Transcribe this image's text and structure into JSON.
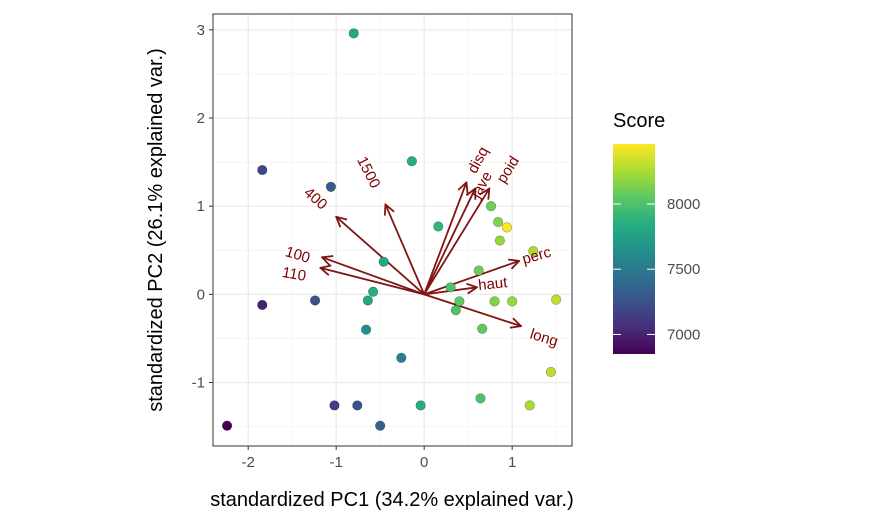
{
  "chart_data": {
    "type": "scatter",
    "xlabel": "standardized PC1 (34.2% explained var.)",
    "ylabel": "standardized PC2 (26.1% explained var.)",
    "xlim": [
      -2.4,
      1.68
    ],
    "ylim": [
      -1.72,
      3.18
    ],
    "x_ticks": [
      -2,
      -1,
      0,
      1
    ],
    "y_ticks": [
      -1,
      0,
      1,
      2,
      3
    ],
    "x_tick_labels": [
      "-2",
      "-1",
      "0",
      "1"
    ],
    "y_tick_labels": [
      "-1",
      "0",
      "1",
      "2",
      "3"
    ],
    "grid": true,
    "legend": {
      "title": "Score",
      "position": "right",
      "min": 6850,
      "max": 8460,
      "breaks": [
        7000,
        7500,
        8000
      ],
      "break_labels": [
        "7000",
        "7500",
        "8000"
      ],
      "colormap": "viridis"
    },
    "points": [
      {
        "x": -0.8,
        "y": 2.96,
        "score": 7800
      },
      {
        "x": -1.84,
        "y": 1.41,
        "score": 7200
      },
      {
        "x": -1.06,
        "y": 1.22,
        "score": 7300
      },
      {
        "x": -0.14,
        "y": 1.51,
        "score": 7850
      },
      {
        "x": 0.16,
        "y": 0.77,
        "score": 7900
      },
      {
        "x": -0.46,
        "y": 0.37,
        "score": 7800
      },
      {
        "x": -0.58,
        "y": 0.03,
        "score": 7850
      },
      {
        "x": -0.64,
        "y": -0.07,
        "score": 7800
      },
      {
        "x": -0.66,
        "y": -0.4,
        "score": 7650
      },
      {
        "x": -0.26,
        "y": -0.72,
        "score": 7550
      },
      {
        "x": -1.84,
        "y": -0.12,
        "score": 7000
      },
      {
        "x": -1.24,
        "y": -0.07,
        "score": 7250
      },
      {
        "x": -2.24,
        "y": -1.49,
        "score": 6850
      },
      {
        "x": -1.02,
        "y": -1.26,
        "score": 7150
      },
      {
        "x": -0.76,
        "y": -1.26,
        "score": 7250
      },
      {
        "x": -0.5,
        "y": -1.49,
        "score": 7350
      },
      {
        "x": -0.04,
        "y": -1.26,
        "score": 7850
      },
      {
        "x": 0.64,
        "y": -1.18,
        "score": 8000
      },
      {
        "x": 0.3,
        "y": 0.08,
        "score": 8000
      },
      {
        "x": 0.4,
        "y": -0.08,
        "score": 8050
      },
      {
        "x": 0.36,
        "y": -0.18,
        "score": 8000
      },
      {
        "x": 0.66,
        "y": -0.39,
        "score": 8050
      },
      {
        "x": 0.62,
        "y": 0.27,
        "score": 8100
      },
      {
        "x": 0.76,
        "y": 1.0,
        "score": 8100
      },
      {
        "x": 0.84,
        "y": 0.82,
        "score": 8150
      },
      {
        "x": 0.86,
        "y": 0.61,
        "score": 8200
      },
      {
        "x": 0.94,
        "y": 0.76,
        "score": 8460
      },
      {
        "x": 0.8,
        "y": -0.08,
        "score": 8150
      },
      {
        "x": 1.0,
        "y": -0.08,
        "score": 8200
      },
      {
        "x": 1.24,
        "y": 0.49,
        "score": 8250
      },
      {
        "x": 1.5,
        "y": -0.06,
        "score": 8300
      },
      {
        "x": 1.44,
        "y": -0.88,
        "score": 8300
      },
      {
        "x": 1.2,
        "y": -1.26,
        "score": 8250
      }
    ],
    "arrows": [
      {
        "label": "1500",
        "x": -0.44,
        "y": 1.02,
        "lx": -0.64,
        "ly": 1.38,
        "angle": 63
      },
      {
        "label": "400",
        "x": -1.0,
        "y": 0.88,
        "lx": -1.24,
        "ly": 1.08,
        "angle": 41
      },
      {
        "label": "100",
        "x": -1.16,
        "y": 0.42,
        "lx": -1.44,
        "ly": 0.44,
        "angle": 17
      },
      {
        "label": "110",
        "x": -1.18,
        "y": 0.3,
        "lx": -1.48,
        "ly": 0.22,
        "angle": 10
      },
      {
        "label": "disq",
        "x": 0.48,
        "y": 1.27,
        "lx": 0.62,
        "ly": 1.52,
        "angle": -62
      },
      {
        "label": "jave",
        "x": 0.58,
        "y": 1.2,
        "lx": 0.66,
        "ly": 1.24,
        "angle": -60
      },
      {
        "label": "poid",
        "x": 0.74,
        "y": 1.2,
        "lx": 0.96,
        "ly": 1.41,
        "angle": -58
      },
      {
        "label": "perc",
        "x": 1.08,
        "y": 0.38,
        "lx": 1.28,
        "ly": 0.43,
        "angle": -16
      },
      {
        "label": "haut",
        "x": 0.6,
        "y": 0.08,
        "lx": 0.78,
        "ly": 0.11,
        "angle": -6
      },
      {
        "label": "long",
        "x": 1.1,
        "y": -0.36,
        "lx": 1.36,
        "ly": -0.5,
        "angle": 17
      }
    ],
    "colors": {
      "arrow": "#7f1414",
      "arrow_label": "#7f0000",
      "panel_border": "#333333",
      "grid_major": "#ebebeb",
      "grid_minor": "#f5f5f5"
    }
  }
}
